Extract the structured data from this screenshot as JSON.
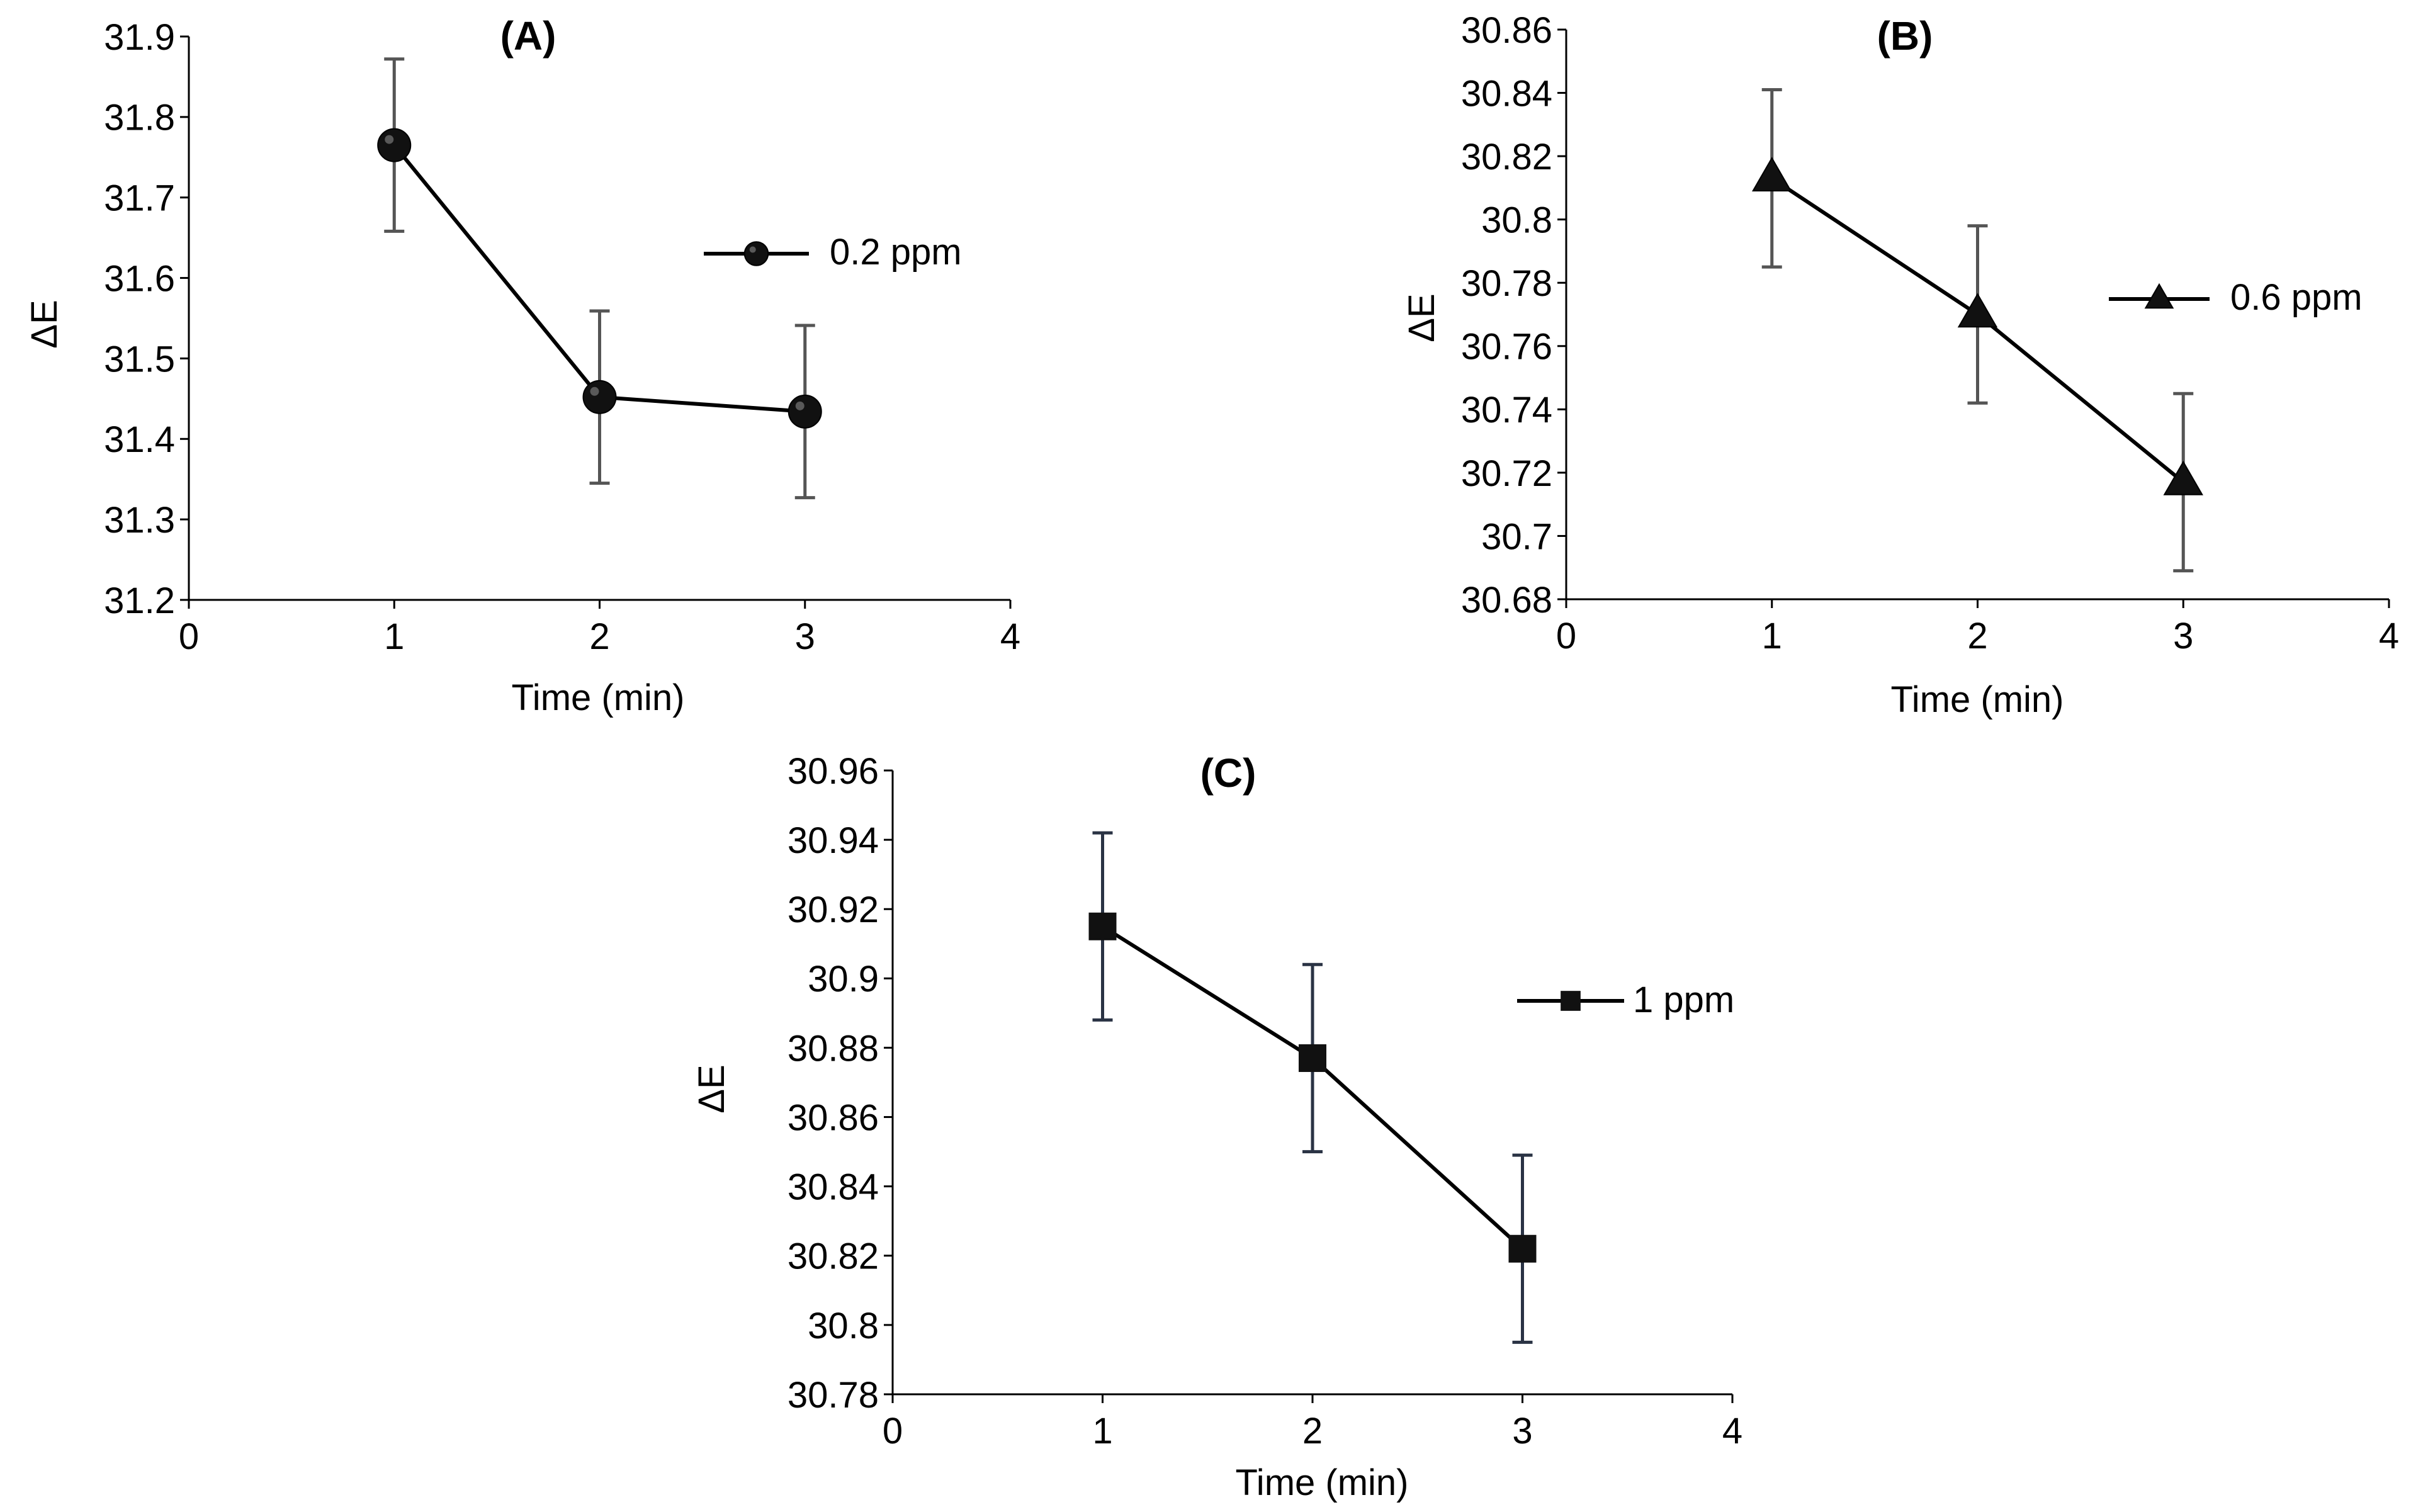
{
  "chart_data": [
    {
      "id": "A",
      "type": "line",
      "title": "(A)",
      "xlabel": "Time (min)",
      "ylabel": "ΔE",
      "xlim": [
        0,
        4
      ],
      "ylim": [
        31.2,
        31.9
      ],
      "xticks": [
        0,
        1,
        2,
        3,
        4
      ],
      "yticks": [
        31.2,
        31.3,
        31.4,
        31.5,
        31.6,
        31.7,
        31.8,
        31.9
      ],
      "ytick_labels": [
        "31.2",
        "31.3",
        "31.4",
        "31.5",
        "31.6",
        "31.7",
        "31.8",
        "31.9"
      ],
      "marker": "circle",
      "errorbar_color": "#555555",
      "series": [
        {
          "name": "0.2 ppm",
          "x": [
            1,
            2,
            3
          ],
          "y": [
            31.765,
            31.452,
            31.434
          ],
          "err": [
            0.107,
            0.107,
            0.107
          ]
        }
      ]
    },
    {
      "id": "B",
      "type": "line",
      "title": "(B)",
      "xlabel": "Time (min)",
      "ylabel": "ΔE",
      "xlim": [
        0,
        4
      ],
      "ylim": [
        30.68,
        30.86
      ],
      "xticks": [
        0,
        1,
        2,
        3,
        4
      ],
      "yticks": [
        30.68,
        30.7,
        30.72,
        30.74,
        30.76,
        30.78,
        30.8,
        30.82,
        30.84,
        30.86
      ],
      "ytick_labels": [
        "30.68",
        "30.7",
        "30.72",
        "30.74",
        "30.76",
        "30.78",
        "30.8",
        "30.82",
        "30.84",
        "30.86"
      ],
      "marker": "triangle",
      "errorbar_color": "#555555",
      "series": [
        {
          "name": "0.6 ppm",
          "x": [
            1,
            2,
            3
          ],
          "y": [
            30.813,
            30.77,
            30.717
          ],
          "err": [
            0.028,
            0.028,
            0.028
          ]
        }
      ]
    },
    {
      "id": "C",
      "type": "line",
      "title": "(C)",
      "xlabel": "Time (min)",
      "ylabel": "ΔE",
      "xlim": [
        0,
        4
      ],
      "ylim": [
        30.78,
        30.96
      ],
      "xticks": [
        0,
        1,
        2,
        3,
        4
      ],
      "yticks": [
        30.78,
        30.8,
        30.82,
        30.84,
        30.86,
        30.88,
        30.9,
        30.92,
        30.94,
        30.96
      ],
      "ytick_labels": [
        "30.78",
        "30.8",
        "30.82",
        "30.84",
        "30.86",
        "30.88",
        "30.9",
        "30.92",
        "30.94",
        "30.96"
      ],
      "marker": "square",
      "errorbar_color": "#2a3344",
      "series": [
        {
          "name": "1 ppm",
          "x": [
            1,
            2,
            3
          ],
          "y": [
            30.915,
            30.877,
            30.822
          ],
          "err": [
            0.027,
            0.027,
            0.027
          ]
        }
      ]
    }
  ]
}
